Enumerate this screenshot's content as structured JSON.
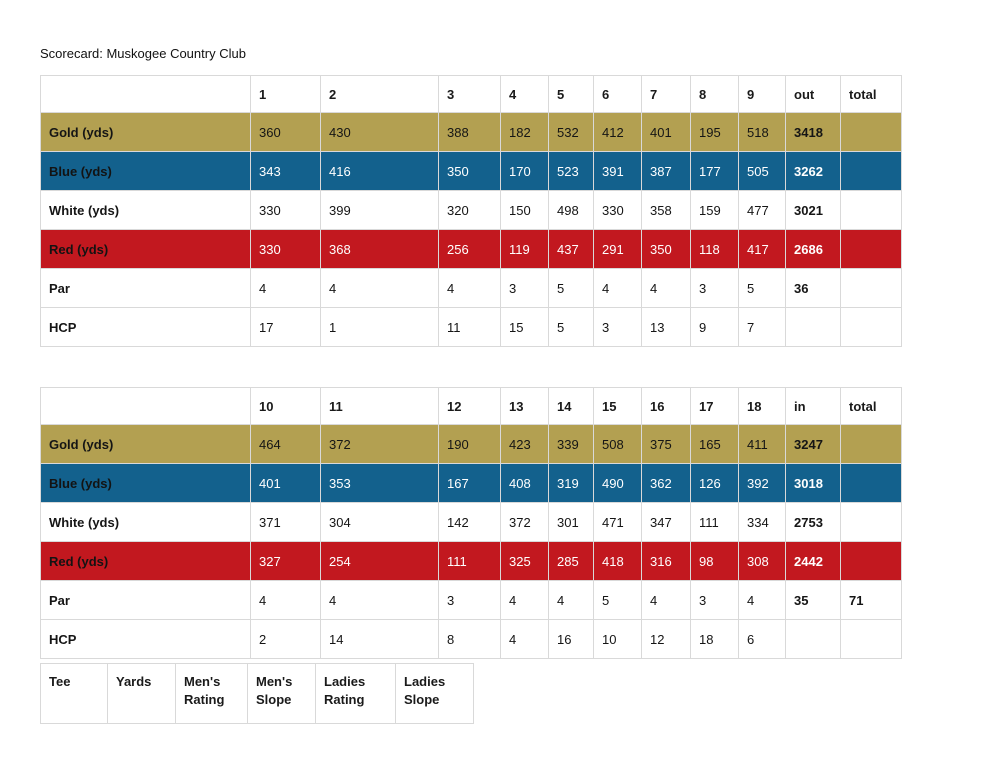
{
  "page": {
    "title": "Scorecard: Muskogee Country Club"
  },
  "colors": {
    "gold": "#b3a051",
    "blue": "#13618d",
    "red": "#c2181f",
    "border": "#d9d9d9"
  },
  "front": {
    "headers": [
      "",
      "1",
      "2",
      "3",
      "4",
      "5",
      "6",
      "7",
      "8",
      "9",
      "out",
      "total"
    ],
    "rows": [
      {
        "label": "Gold (yds)",
        "style": "gold",
        "values": [
          "360",
          "430",
          "388",
          "182",
          "532",
          "412",
          "401",
          "195",
          "518"
        ],
        "out": "3418",
        "total": ""
      },
      {
        "label": "Blue (yds)",
        "style": "blue",
        "values": [
          "343",
          "416",
          "350",
          "170",
          "523",
          "391",
          "387",
          "177",
          "505"
        ],
        "out": "3262",
        "total": ""
      },
      {
        "label": "White (yds)",
        "style": "white",
        "values": [
          "330",
          "399",
          "320",
          "150",
          "498",
          "330",
          "358",
          "159",
          "477"
        ],
        "out": "3021",
        "total": ""
      },
      {
        "label": "Red (yds)",
        "style": "red",
        "values": [
          "330",
          "368",
          "256",
          "119",
          "437",
          "291",
          "350",
          "118",
          "417"
        ],
        "out": "2686",
        "total": ""
      },
      {
        "label": "Par",
        "style": "white",
        "values": [
          "4",
          "4",
          "4",
          "3",
          "5",
          "4",
          "4",
          "3",
          "5"
        ],
        "out": "36",
        "total": ""
      },
      {
        "label": "HCP",
        "style": "white",
        "values": [
          "17",
          "1",
          "11",
          "15",
          "5",
          "3",
          "13",
          "9",
          "7"
        ],
        "out": "",
        "total": ""
      }
    ]
  },
  "back": {
    "headers": [
      "",
      "10",
      "11",
      "12",
      "13",
      "14",
      "15",
      "16",
      "17",
      "18",
      "in",
      "total"
    ],
    "rows": [
      {
        "label": "Gold (yds)",
        "style": "gold",
        "values": [
          "464",
          "372",
          "190",
          "423",
          "339",
          "508",
          "375",
          "165",
          "411"
        ],
        "out": "3247",
        "total": ""
      },
      {
        "label": "Blue (yds)",
        "style": "blue",
        "values": [
          "401",
          "353",
          "167",
          "408",
          "319",
          "490",
          "362",
          "126",
          "392"
        ],
        "out": "3018",
        "total": ""
      },
      {
        "label": "White (yds)",
        "style": "white",
        "values": [
          "371",
          "304",
          "142",
          "372",
          "301",
          "471",
          "347",
          "111",
          "334"
        ],
        "out": "2753",
        "total": ""
      },
      {
        "label": "Red (yds)",
        "style": "red",
        "values": [
          "327",
          "254",
          "111",
          "325",
          "285",
          "418",
          "316",
          "98",
          "308"
        ],
        "out": "2442",
        "total": ""
      },
      {
        "label": "Par",
        "style": "white",
        "values": [
          "4",
          "4",
          "3",
          "4",
          "4",
          "5",
          "4",
          "3",
          "4"
        ],
        "out": "35",
        "total": "71"
      },
      {
        "label": "HCP",
        "style": "white",
        "values": [
          "2",
          "14",
          "8",
          "4",
          "16",
          "10",
          "12",
          "18",
          "6"
        ],
        "out": "",
        "total": ""
      }
    ]
  },
  "tee": {
    "headers": [
      "Tee",
      "Yards",
      "Men's Rating",
      "Men's Slope",
      "Ladies Rating",
      "Ladies Slope"
    ]
  }
}
